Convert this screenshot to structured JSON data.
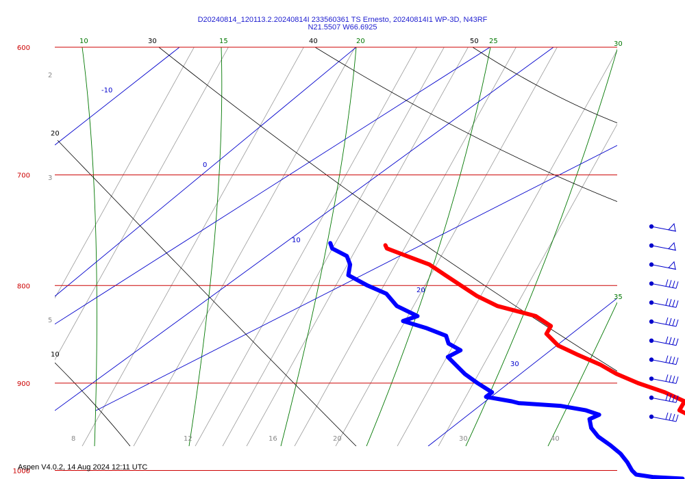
{
  "header": {
    "title_line1": "D20240814_120113.2.20240814I 233560361 TS Ernesto, 20240814I1 WP-3D, N43RF",
    "title_line2": "N21.5507 W66.6925"
  },
  "footer": {
    "text": "Aspen V4.0.2, 14 Aug 2024  12:11 UTC"
  },
  "colors": {
    "temperature": "#ff0000",
    "dewpoint": "#0000ff",
    "isobar": "#cc0000",
    "isotherm": "#0000cc",
    "dry_adiabat": "#000000",
    "moist_adiabat": "#007700",
    "mixing_ratio": "#888888",
    "wind_barb": "#0000cc"
  },
  "chart_data": {
    "type": "skew-t",
    "title": "D20240814_120113.2.20240814I 233560361 TS Ernesto, 20240814I1 WP-3D, N43RF",
    "subtitle": "N21.5507 W66.6925",
    "y_axis": {
      "scale": "log",
      "units": "hPa",
      "range": [
        1050,
        600
      ],
      "ticks": [
        600,
        700,
        800,
        900,
        1000
      ]
    },
    "grid": true,
    "isotherm_labels": [
      "-10",
      "0",
      "10",
      "20",
      "30"
    ],
    "dry_adiabat_labels": [
      "30",
      "40",
      "50",
      "20",
      "10"
    ],
    "moist_adiabat_labels": [
      "10",
      "15",
      "20",
      "25",
      "30",
      "35"
    ],
    "mixing_ratio_labels": [
      "2",
      "3",
      "5",
      "8",
      "12",
      "16",
      "20",
      "30",
      "40"
    ],
    "series": [
      {
        "key": "temperature",
        "pressure": [
          762,
          765,
          770,
          780,
          790,
          800,
          810,
          820,
          830,
          840,
          848,
          860,
          870,
          880,
          890,
          900,
          910,
          920,
          930,
          940,
          945,
          950,
          960,
          970,
          980,
          990,
          1000,
          1005,
          1010
        ],
        "values": [
          15.0,
          14.9,
          15.4,
          16.4,
          16.7,
          17.0,
          17.3,
          17.9,
          19.5,
          19.8,
          19.1,
          19.1,
          19.7,
          20.4,
          20.8,
          21.5,
          22.5,
          23.1,
          22.3,
          22.8,
          23.2,
          23.8,
          24.8,
          25.5,
          26.3,
          26.9,
          27.3,
          27.7,
          27.9
        ]
      },
      {
        "key": "dewpoint",
        "pressure": [
          760,
          765,
          772,
          780,
          790,
          800,
          808,
          820,
          830,
          835,
          842,
          850,
          858,
          865,
          872,
          880,
          890,
          900,
          910,
          915,
          920,
          922,
          925,
          930,
          935,
          940,
          950,
          960,
          970,
          980,
          990,
          1000,
          1005,
          1008,
          1010
        ],
        "values": [
          12.0,
          11.8,
          12.2,
          11.9,
          11.2,
          11.7,
          12.3,
          12.2,
          12.8,
          11.7,
          12.6,
          13.3,
          13.0,
          13.3,
          12.2,
          12.2,
          12.2,
          12.4,
          12.7,
          12.1,
          13.3,
          13.6,
          15.8,
          17.0,
          17.5,
          16.7,
          16.3,
          16.2,
          16.4,
          16.5,
          16.4,
          16.2,
          16.2,
          17.0,
          18.6
        ]
      }
    ],
    "wind_barbs": [
      {
        "speed": 50
      },
      {
        "speed": 50
      },
      {
        "speed": 50
      },
      {
        "speed": 40
      },
      {
        "speed": 40
      },
      {
        "speed": 40
      },
      {
        "speed": 40
      },
      {
        "speed": 40
      },
      {
        "speed": 40
      },
      {
        "speed": 40
      },
      {
        "speed": 40
      }
    ]
  }
}
